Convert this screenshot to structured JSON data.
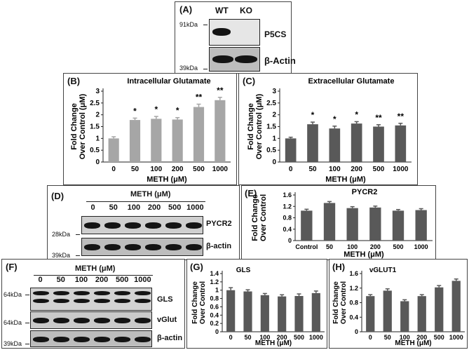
{
  "panelA": {
    "label": "(A)",
    "lane1": "WT",
    "lane2": "KO",
    "mw_top": "91kDa",
    "mw_bottom": "39kDa",
    "protein1": "P5CS",
    "protein2": "β-Actin"
  },
  "panelD": {
    "label": "(D)",
    "header": "METH (μM)",
    "lanes": [
      "0",
      "50",
      "100",
      "200",
      "500",
      "1000"
    ],
    "mw_top": "28kDa",
    "mw_bottom": "39kDa",
    "protein1": "PYCR2",
    "protein2": "β-actin"
  },
  "panelF": {
    "label": "(F)",
    "header": "METH (μM)",
    "lanes": [
      "0",
      "50",
      "100",
      "200",
      "500",
      "1000"
    ],
    "mw1": "64kDa",
    "mw2": "64kDa",
    "mw3": "39kDa",
    "protein1": "GLS",
    "protein2": "vGlut",
    "protein3": "β-actin"
  },
  "chart_data": [
    {
      "panel": "(B)",
      "type": "bar",
      "title": "Intracellular Glutamate",
      "xlabel": "METH (μM)",
      "ylabel": "Fold Change Over Control (μM)",
      "categories": [
        "0",
        "50",
        "100",
        "200",
        "500",
        "1000"
      ],
      "values": [
        1.0,
        1.78,
        1.83,
        1.8,
        2.33,
        2.62
      ],
      "errors": [
        0.07,
        0.08,
        0.1,
        0.08,
        0.12,
        0.12
      ],
      "significance": [
        "",
        "*",
        "*",
        "*",
        "**",
        "**"
      ],
      "ylim": [
        0,
        3
      ],
      "yticks": [
        "0",
        "0.5",
        "1",
        "1.5",
        "2",
        "2.5",
        "3"
      ],
      "color": "#a6a6a6",
      "grid": false
    },
    {
      "panel": "(C)",
      "type": "bar",
      "title": "Extracellular Glutamate",
      "xlabel": "METH (μM)",
      "ylabel": "Fold Change Over Control (μM)",
      "categories": [
        "0",
        "50",
        "100",
        "200",
        "500",
        "1000"
      ],
      "values": [
        1.0,
        1.6,
        1.42,
        1.63,
        1.5,
        1.55
      ],
      "errors": [
        0.05,
        0.09,
        0.1,
        0.08,
        0.08,
        0.09
      ],
      "significance": [
        "",
        "*",
        "*",
        "*",
        "**",
        "**"
      ],
      "ylim": [
        0,
        3
      ],
      "yticks": [
        "0",
        "0.5",
        "1",
        "1.5",
        "2",
        "2.5",
        "3"
      ],
      "color": "#595959",
      "grid": false
    },
    {
      "panel": "(E)",
      "type": "bar",
      "title": "PYCR2",
      "xlabel": "METH (μM)",
      "ylabel": "Fold Change Over Control",
      "categories": [
        "Control",
        "50",
        "100",
        "200",
        "500",
        "1000"
      ],
      "values": [
        1.05,
        1.32,
        1.14,
        1.16,
        1.05,
        1.07
      ],
      "errors": [
        0.05,
        0.05,
        0.05,
        0.05,
        0.04,
        0.05
      ],
      "ylim": [
        0,
        1.6
      ],
      "yticks": [
        "0",
        "0.4",
        "0.8",
        "1.2",
        "1.6"
      ],
      "color": "#595959",
      "grid": false
    },
    {
      "panel": "(G)",
      "type": "bar",
      "title": "GLS",
      "xlabel": "METH (μM)",
      "ylabel": "Fold Change Over Control",
      "categories": [
        "0",
        "50",
        "100",
        "200",
        "500",
        "1000"
      ],
      "values": [
        1.0,
        0.97,
        0.88,
        0.85,
        0.86,
        0.93
      ],
      "errors": [
        0.06,
        0.04,
        0.04,
        0.04,
        0.05,
        0.05
      ],
      "ylim": [
        0,
        1.4
      ],
      "yticks": [
        "0",
        "0.2",
        "0.4",
        "0.6",
        "0.8",
        "1",
        "1.2",
        "1.4"
      ],
      "color": "#595959",
      "grid": false
    },
    {
      "panel": "(H)",
      "type": "bar",
      "title": "vGLUT1",
      "xlabel": "METH (μM)",
      "ylabel": "Fold Change Over Control",
      "categories": [
        "0",
        "50",
        "100",
        "200",
        "500",
        "1000"
      ],
      "values": [
        0.98,
        1.13,
        0.84,
        0.98,
        1.22,
        1.4
      ],
      "errors": [
        0.04,
        0.05,
        0.04,
        0.04,
        0.05,
        0.05
      ],
      "ylim": [
        0,
        1.6
      ],
      "yticks": [
        "0",
        "0.4",
        "0.8",
        "1.2",
        "1.6"
      ],
      "color": "#595959",
      "grid": false
    }
  ]
}
